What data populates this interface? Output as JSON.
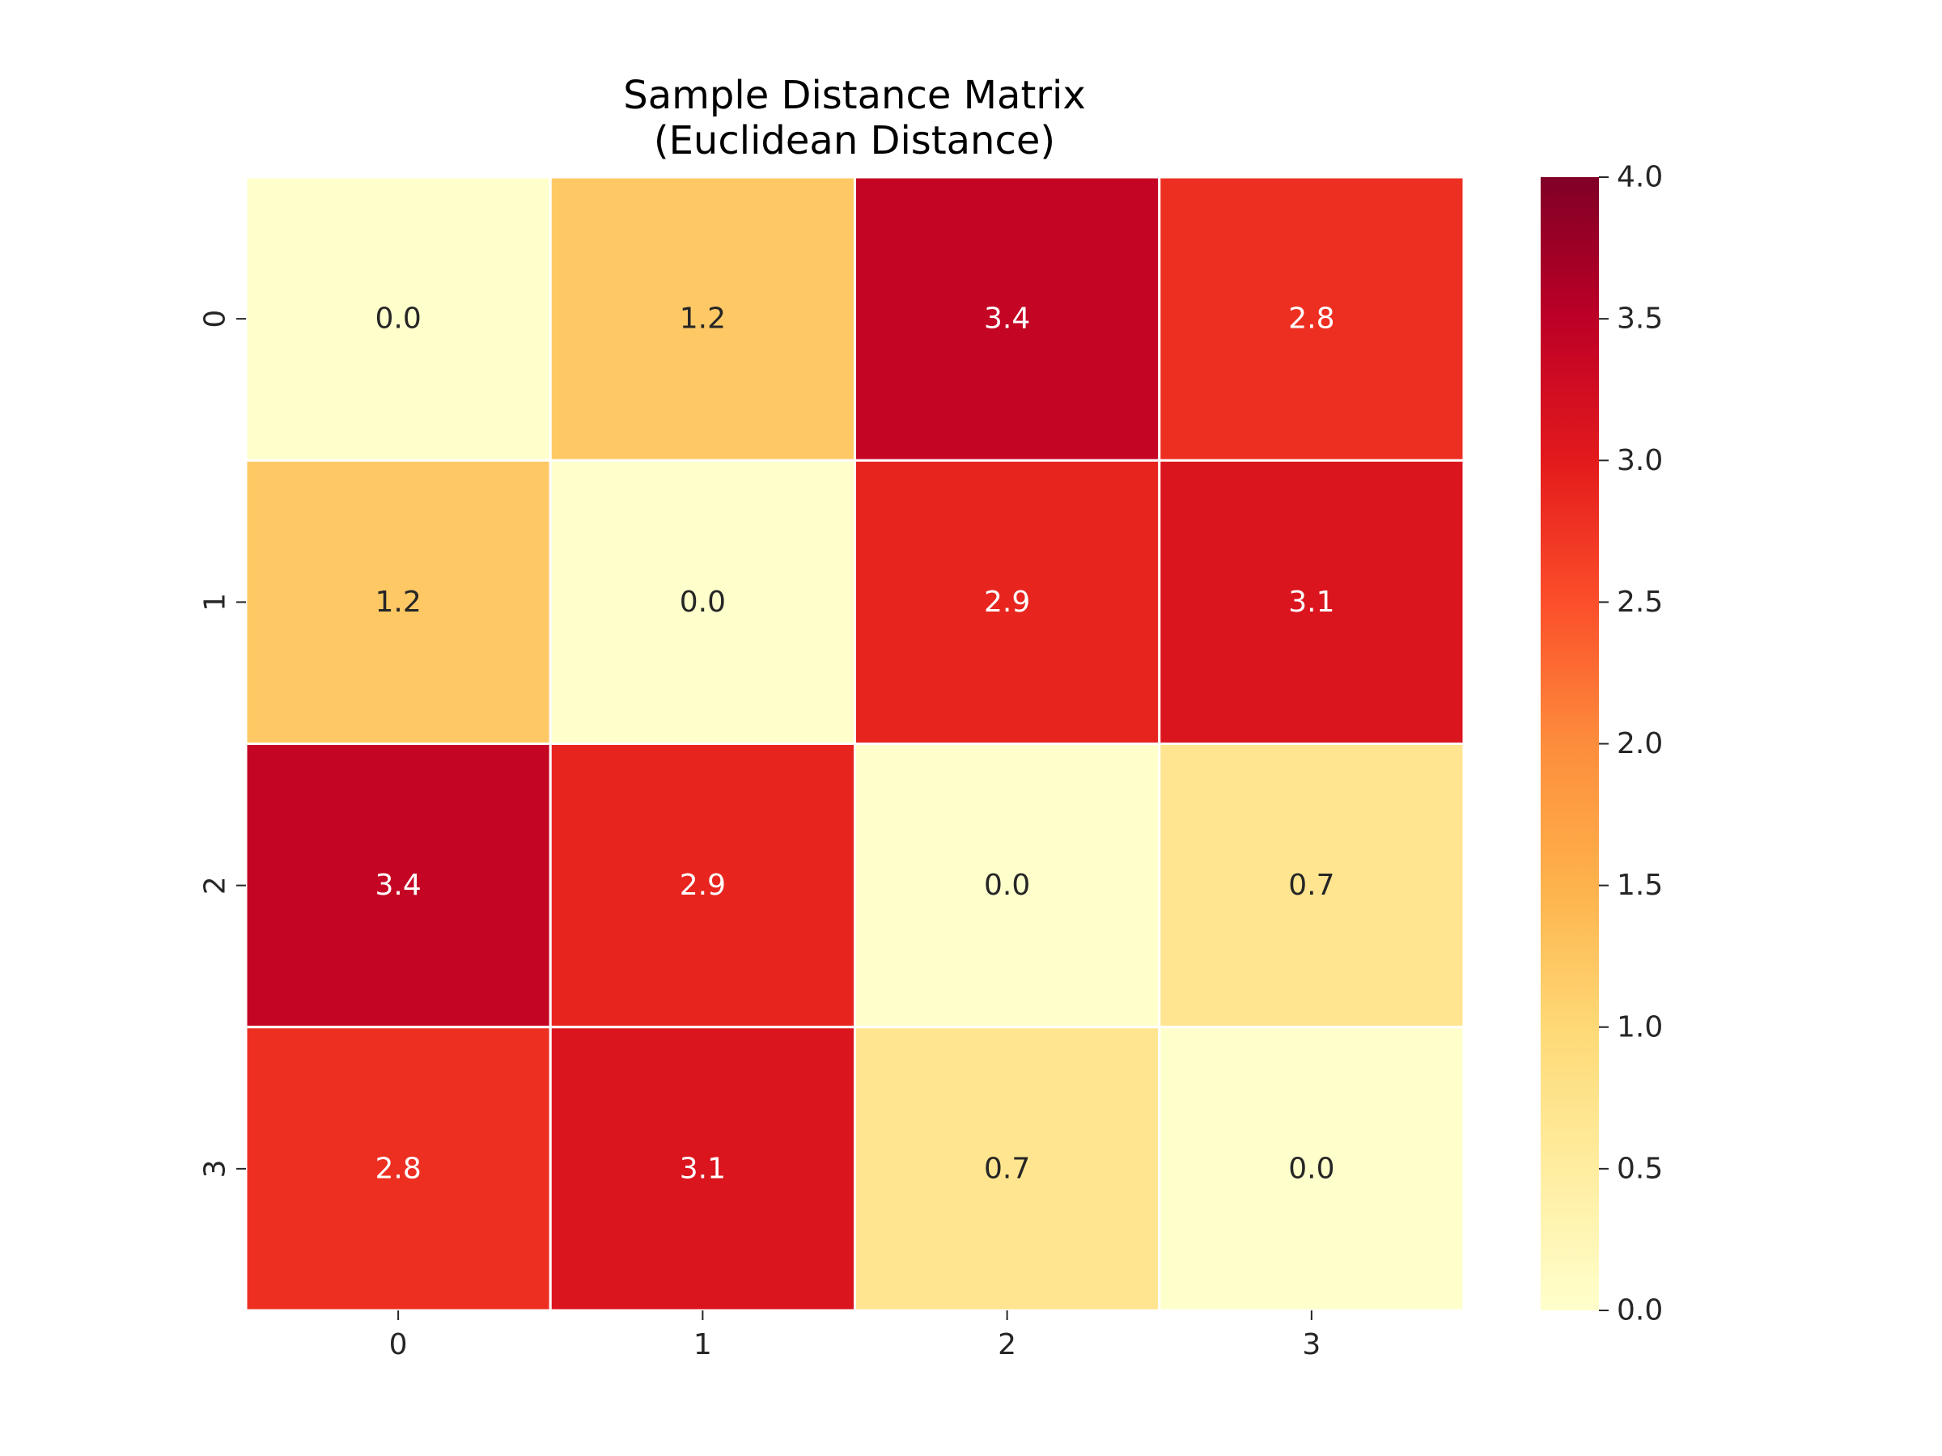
{
  "chart_data": {
    "type": "heatmap",
    "title_lines": [
      "Sample Distance Matrix",
      "(Euclidean Distance)"
    ],
    "xlabel": "",
    "ylabel": "",
    "x_categories": [
      "0",
      "1",
      "2",
      "3"
    ],
    "y_categories": [
      "0",
      "1",
      "2",
      "3"
    ],
    "values": [
      [
        0.0,
        1.2,
        3.4,
        2.8
      ],
      [
        1.2,
        0.0,
        2.9,
        3.1
      ],
      [
        3.4,
        2.9,
        0.0,
        0.7
      ],
      [
        2.8,
        3.1,
        0.7,
        0.0
      ]
    ],
    "value_labels": [
      [
        "0.0",
        "1.2",
        "3.4",
        "2.8"
      ],
      [
        "1.2",
        "0.0",
        "2.9",
        "3.1"
      ],
      [
        "3.4",
        "2.9",
        "0.0",
        "0.7"
      ],
      [
        "2.8",
        "3.1",
        "0.7",
        "0.0"
      ]
    ],
    "colormap": "YlOrRd",
    "color_range": [
      0.0,
      4.0
    ],
    "colorbar_ticks": [
      "0.0",
      "0.5",
      "1.0",
      "1.5",
      "2.0",
      "2.5",
      "3.0",
      "3.5",
      "4.0"
    ],
    "grid_line_color": "#ffffff",
    "annotation_colors": {
      "light": "#ffffff",
      "dark": "#262626"
    }
  }
}
